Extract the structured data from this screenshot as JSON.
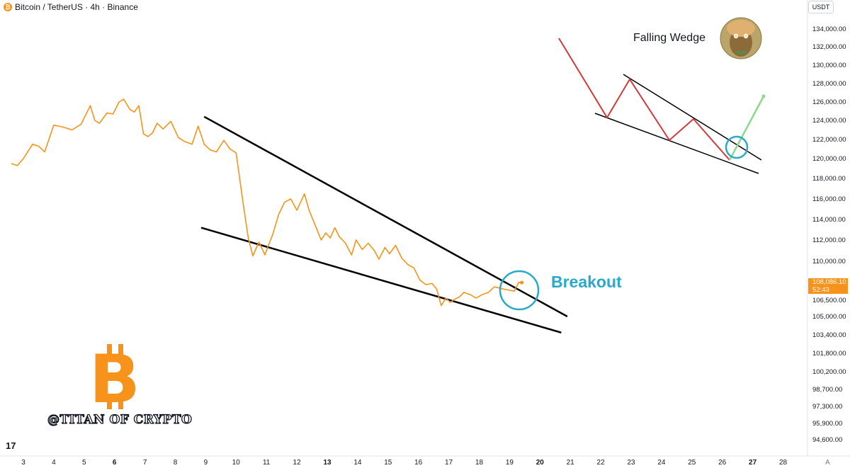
{
  "header": {
    "symbol_icon_glyph": "₿",
    "title": "Bitcoin / TetherUS · 4h · Binance"
  },
  "price_axis": {
    "unit": "USDT",
    "last_price": "108,086.10",
    "countdown": "52:43",
    "labels": [
      "134,000.00",
      "132,000.00",
      "130,000.00",
      "128,000.00",
      "126,000.00",
      "124,000.00",
      "122,000.00",
      "120,000.00",
      "118,000.00",
      "116,000.00",
      "114,000.00",
      "112,000.00",
      "110,000.00",
      "106,500.00",
      "105,000.00",
      "103,400.00",
      "101,800.00",
      "100,200.00",
      "98,700.00",
      "97,300.00",
      "95,900.00",
      "94,600.00"
    ],
    "auto_scale_label": "A"
  },
  "time_axis": {
    "labels": [
      "3",
      "4",
      "5",
      "6",
      "7",
      "8",
      "9",
      "10",
      "11",
      "12",
      "13",
      "14",
      "15",
      "16",
      "17",
      "18",
      "19",
      "20",
      "21",
      "22",
      "23",
      "24",
      "25",
      "26",
      "27",
      "28"
    ],
    "bold": [
      "6",
      "13",
      "20",
      "27"
    ]
  },
  "annotations": {
    "breakout": "Breakout",
    "inset_title": "Falling Wedge",
    "watermark": "@TITAN OF CRYPTO",
    "bitcoin_logo_glyph": "B",
    "tradingview_logo": "17"
  },
  "colors": {
    "price_line": "#f7931a",
    "wedge_lines": "#000000",
    "breakout_circle": "#2aa9c9",
    "inset_zigzag": "#d23a3a",
    "inset_breakout": "#8fd68f",
    "price_tag": "#f7931a"
  },
  "chart_data": {
    "type": "line",
    "symbol": "Bitcoin / TetherUS",
    "interval": "4h",
    "exchange": "Binance",
    "x_unit": "day of month",
    "y_scale": "log",
    "ylim": [
      94000,
      135000
    ],
    "series": [
      {
        "x": [
          2.6,
          2.8,
          3.0,
          3.3,
          3.5,
          3.7,
          4.0,
          4.3,
          4.6,
          4.9,
          5.2,
          5.35,
          5.5,
          5.75,
          5.95,
          6.15,
          6.3,
          6.5,
          6.65,
          6.8,
          6.95,
          7.1,
          7.25,
          7.4,
          7.6,
          7.85,
          8.1,
          8.3,
          8.55,
          8.75,
          8.95,
          9.15,
          9.35,
          9.6,
          9.8,
          10.0,
          10.25,
          10.4,
          10.55,
          10.75,
          10.95,
          11.05,
          11.2,
          11.4,
          11.6,
          11.8,
          12.0,
          12.25,
          12.4,
          12.65,
          12.8,
          12.95,
          13.1,
          13.25,
          13.4,
          13.6,
          13.8,
          13.95,
          14.15,
          14.35,
          14.55,
          14.7,
          14.9,
          15.05,
          15.25,
          15.45,
          15.65,
          15.85,
          16.05,
          16.25,
          16.45,
          16.6,
          16.75,
          16.9,
          17.05,
          17.2,
          17.35,
          17.5,
          17.7,
          17.9,
          18.1,
          18.3,
          18.5,
          18.65,
          18.8,
          19.0,
          19.15,
          19.3,
          19.4
        ],
        "y": [
          119500,
          119300,
          120000,
          121500,
          121300,
          120700,
          123500,
          123300,
          123000,
          123600,
          125600,
          124000,
          123700,
          124800,
          124700,
          126000,
          126300,
          125200,
          124900,
          125600,
          122600,
          122300,
          122700,
          123700,
          123100,
          123900,
          122200,
          121800,
          121500,
          123400,
          121500,
          120900,
          120700,
          121900,
          121000,
          120600,
          115200,
          112200,
          110500,
          111800,
          110600,
          111400,
          112500,
          114500,
          115700,
          116000,
          114900,
          116500,
          114900,
          113100,
          112000,
          112700,
          112200,
          113200,
          112300,
          111700,
          110600,
          112000,
          111100,
          111700,
          111000,
          110200,
          111300,
          110700,
          111500,
          110300,
          109700,
          109400,
          108300,
          107900,
          108000,
          107500,
          106000,
          106700,
          106300,
          106600,
          106800,
          107200,
          107000,
          106700,
          107000,
          107200,
          107700,
          107600,
          107500,
          107400,
          107300,
          108100,
          108086
        ]
      }
    ],
    "trendlines": [
      {
        "name": "upper",
        "from": [
          8.95,
          124400
        ],
        "to": [
          20.9,
          105000
        ]
      },
      {
        "name": "lower",
        "from": [
          8.85,
          113200
        ],
        "to": [
          20.7,
          103600
        ]
      }
    ]
  }
}
